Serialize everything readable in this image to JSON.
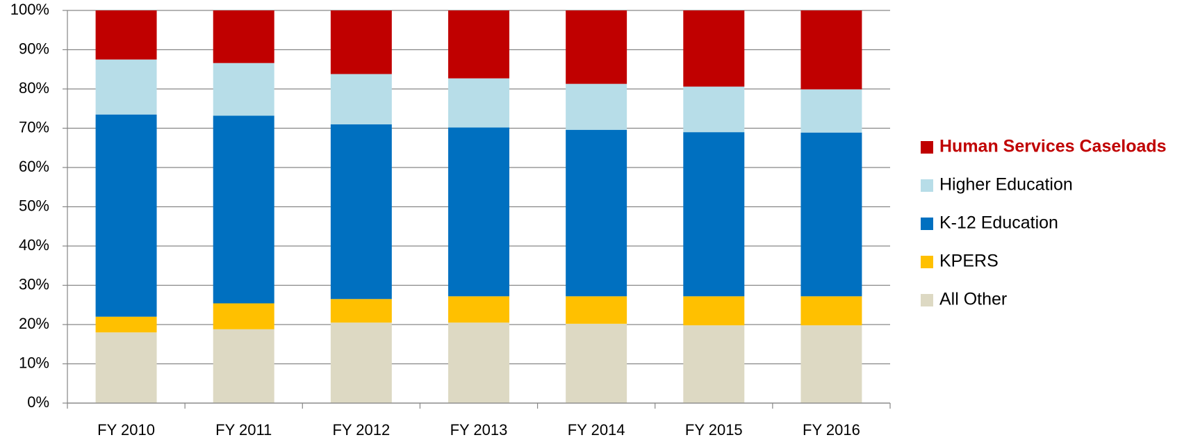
{
  "chart_data": {
    "type": "stacked_bar",
    "categories": [
      "FY 2010",
      "FY 2011",
      "FY 2012",
      "FY 2013",
      "FY 2014",
      "FY 2015",
      "FY 2016"
    ],
    "series": [
      {
        "name": "All Other",
        "color": "#ddd9c3",
        "values": [
          18,
          18.8,
          20.5,
          20.5,
          20.2,
          19.8,
          19.8
        ]
      },
      {
        "name": "KPERS",
        "color": "#ffc000",
        "values": [
          4,
          6.6,
          6,
          6.7,
          7,
          7.4,
          7.4
        ]
      },
      {
        "name": "K-12 Education",
        "color": "#0070c0",
        "values": [
          51.5,
          47.8,
          44.5,
          43,
          42.4,
          41.8,
          41.7
        ]
      },
      {
        "name": "Higher Education",
        "color": "#b7dde8",
        "values": [
          14,
          13.4,
          12.8,
          12.5,
          11.7,
          11.6,
          11
        ]
      },
      {
        "name": "Human Services Caseloads",
        "color": "#c00000",
        "values": [
          12.5,
          13.4,
          16.2,
          17.3,
          18.7,
          19.4,
          20.1
        ]
      }
    ],
    "ylim": [
      0,
      100
    ],
    "yticks": [
      {
        "value": 0,
        "label": "0%"
      },
      {
        "value": 10,
        "label": "10%"
      },
      {
        "value": 20,
        "label": "20%"
      },
      {
        "value": 30,
        "label": "30%"
      },
      {
        "value": 40,
        "label": "40%"
      },
      {
        "value": 50,
        "label": "50%"
      },
      {
        "value": 60,
        "label": "60%"
      },
      {
        "value": 70,
        "label": "70%"
      },
      {
        "value": 80,
        "label": "80%"
      },
      {
        "value": 90,
        "label": "90%"
      },
      {
        "value": 100,
        "label": "100%"
      }
    ],
    "grid": true,
    "legend": "right"
  }
}
